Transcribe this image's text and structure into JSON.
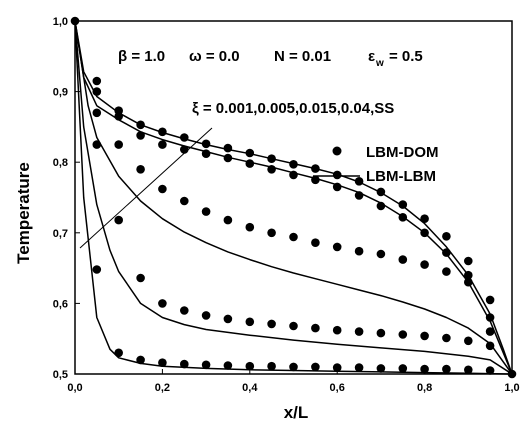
{
  "chart_data": {
    "type": "line",
    "xlabel": "x/L",
    "ylabel": "Temperature",
    "xlim": [
      0.0,
      1.0
    ],
    "ylim": [
      0.5,
      1.0
    ],
    "xticks": [
      "0,0",
      "0,2",
      "0,4",
      "0,6",
      "0,8",
      "1,0"
    ],
    "yticks": [
      "0,5",
      "0,6",
      "0,7",
      "0,8",
      "0,9",
      "1,0"
    ],
    "annotations": {
      "params": [
        "β = 1.0",
        "ω = 0.0",
        "N = 0.01",
        "ε",
        "w",
        "= 0.5"
      ],
      "xi": "ξ = 0.001,0.005,0.015,0.04,SS"
    },
    "legend": {
      "placement": "top-right",
      "dots": "LBM-DOM",
      "line": "LBM-LBM"
    },
    "series": [
      {
        "line_x": [
          0.0,
          0.02,
          0.05,
          0.1,
          0.15,
          0.2,
          0.25,
          0.3,
          0.35,
          0.4,
          0.45,
          0.5,
          0.55,
          0.6,
          0.65,
          0.7,
          0.75,
          0.8,
          0.85,
          0.9,
          0.95,
          0.98,
          1.0
        ],
        "line_y": [
          1.0,
          0.928,
          0.893,
          0.87,
          0.853,
          0.842,
          0.833,
          0.825,
          0.818,
          0.812,
          0.805,
          0.798,
          0.791,
          0.783,
          0.772,
          0.757,
          0.738,
          0.713,
          0.68,
          0.64,
          0.585,
          0.535,
          0.5
        ],
        "dots_x": [
          0.0,
          0.05,
          0.1,
          0.15,
          0.2,
          0.25,
          0.3,
          0.35,
          0.4,
          0.45,
          0.5,
          0.55,
          0.6,
          0.65,
          0.7,
          0.75,
          0.8,
          0.85,
          0.9,
          0.95,
          1.0
        ],
        "dots_y": [
          1.0,
          0.915,
          0.873,
          0.853,
          0.843,
          0.835,
          0.826,
          0.82,
          0.813,
          0.805,
          0.797,
          0.791,
          0.782,
          0.773,
          0.758,
          0.74,
          0.72,
          0.695,
          0.66,
          0.58,
          0.5
        ]
      },
      {
        "line_x": [
          0.0,
          0.02,
          0.05,
          0.1,
          0.15,
          0.2,
          0.25,
          0.3,
          0.35,
          0.4,
          0.45,
          0.5,
          0.55,
          0.6,
          0.65,
          0.7,
          0.75,
          0.8,
          0.85,
          0.9,
          0.95,
          0.98,
          1.0
        ],
        "line_y": [
          1.0,
          0.92,
          0.88,
          0.86,
          0.843,
          0.832,
          0.823,
          0.815,
          0.807,
          0.8,
          0.793,
          0.785,
          0.777,
          0.768,
          0.757,
          0.742,
          0.723,
          0.7,
          0.67,
          0.63,
          0.575,
          0.53,
          0.5
        ],
        "dots_x": [
          0.05,
          0.1,
          0.15,
          0.2,
          0.25,
          0.3,
          0.35,
          0.4,
          0.45,
          0.5,
          0.55,
          0.6,
          0.65,
          0.7,
          0.75,
          0.8,
          0.85,
          0.9,
          0.95
        ],
        "dots_y": [
          0.9,
          0.865,
          0.838,
          0.825,
          0.818,
          0.812,
          0.806,
          0.798,
          0.79,
          0.782,
          0.775,
          0.765,
          0.753,
          0.738,
          0.722,
          0.7,
          0.672,
          0.64,
          0.56
        ]
      },
      {
        "line_x": [
          0.0,
          0.03,
          0.05,
          0.1,
          0.15,
          0.2,
          0.25,
          0.3,
          0.35,
          0.4,
          0.45,
          0.5,
          0.55,
          0.6,
          0.65,
          0.7,
          0.75,
          0.8,
          0.85,
          0.9,
          0.95,
          1.0
        ],
        "line_y": [
          1.0,
          0.88,
          0.835,
          0.78,
          0.745,
          0.72,
          0.701,
          0.686,
          0.673,
          0.662,
          0.652,
          0.643,
          0.635,
          0.627,
          0.619,
          0.611,
          0.602,
          0.592,
          0.58,
          0.565,
          0.543,
          0.5
        ],
        "dots_x": [
          0.05,
          0.1,
          0.15,
          0.2,
          0.25,
          0.3,
          0.35,
          0.4,
          0.45,
          0.5,
          0.55,
          0.6,
          0.65,
          0.7,
          0.75,
          0.8,
          0.85,
          0.9,
          0.95
        ],
        "dots_y": [
          0.87,
          0.825,
          0.79,
          0.762,
          0.745,
          0.73,
          0.718,
          0.708,
          0.7,
          0.694,
          0.686,
          0.68,
          0.674,
          0.67,
          0.662,
          0.655,
          0.645,
          0.63,
          0.605
        ]
      },
      {
        "line_x": [
          0.0,
          0.02,
          0.05,
          0.08,
          0.1,
          0.15,
          0.2,
          0.25,
          0.3,
          0.4,
          0.5,
          0.6,
          0.7,
          0.8,
          0.9,
          0.95,
          1.0
        ],
        "line_y": [
          1.0,
          0.85,
          0.74,
          0.675,
          0.645,
          0.6,
          0.58,
          0.57,
          0.563,
          0.555,
          0.548,
          0.542,
          0.537,
          0.532,
          0.525,
          0.52,
          0.5
        ],
        "dots_x": [
          0.05,
          0.1,
          0.15,
          0.2,
          0.25,
          0.3,
          0.35,
          0.4,
          0.45,
          0.5,
          0.55,
          0.6,
          0.65,
          0.7,
          0.75,
          0.8,
          0.85,
          0.9,
          0.95
        ],
        "dots_y": [
          0.825,
          0.718,
          0.636,
          0.6,
          0.59,
          0.583,
          0.578,
          0.574,
          0.571,
          0.568,
          0.565,
          0.562,
          0.56,
          0.558,
          0.556,
          0.554,
          0.551,
          0.547,
          0.54
        ]
      },
      {
        "line_x": [
          0.0,
          0.02,
          0.05,
          0.08,
          0.1,
          0.15,
          0.2,
          0.3,
          0.4,
          0.5,
          0.6,
          0.7,
          0.8,
          0.9,
          1.0
        ],
        "line_y": [
          1.0,
          0.75,
          0.58,
          0.535,
          0.523,
          0.515,
          0.511,
          0.508,
          0.506,
          0.505,
          0.504,
          0.503,
          0.502,
          0.501,
          0.5
        ],
        "dots_x": [
          0.05,
          0.1,
          0.15,
          0.2,
          0.25,
          0.3,
          0.35,
          0.4,
          0.45,
          0.5,
          0.55,
          0.6,
          0.65,
          0.7,
          0.75,
          0.8,
          0.85,
          0.9,
          0.95
        ],
        "dots_y": [
          0.648,
          0.53,
          0.52,
          0.516,
          0.514,
          0.513,
          0.512,
          0.511,
          0.511,
          0.51,
          0.51,
          0.509,
          0.509,
          0.508,
          0.508,
          0.507,
          0.507,
          0.506,
          0.505
        ]
      }
    ]
  }
}
